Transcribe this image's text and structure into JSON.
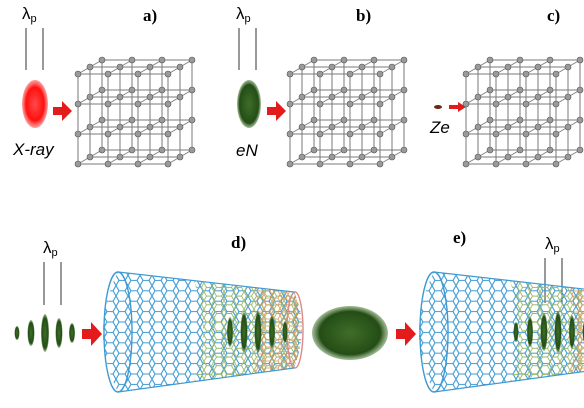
{
  "panels": {
    "a": {
      "label": "a)",
      "particle": "X-ray",
      "lambda_main": "λ",
      "lambda_sub": "p"
    },
    "b": {
      "label": "b)",
      "particle": "eN",
      "lambda_main": "λ",
      "lambda_sub": "p"
    },
    "c": {
      "label": "c)",
      "particle": "Ze"
    },
    "d": {
      "label": "d)",
      "lambda_main": "λ",
      "lambda_sub": "p"
    },
    "e": {
      "label": "e)",
      "lambda_main": "λ",
      "lambda_sub": "p"
    }
  },
  "colors": {
    "xray": "#ff1a1a",
    "beam_green": "#2f5a1e",
    "arrow": "#e31b1b",
    "lattice": "#7a7a7a",
    "tube_blue": "#4aa3d8",
    "tube_yellow": "#d8c24a",
    "tube_red": "#d86a6a"
  }
}
